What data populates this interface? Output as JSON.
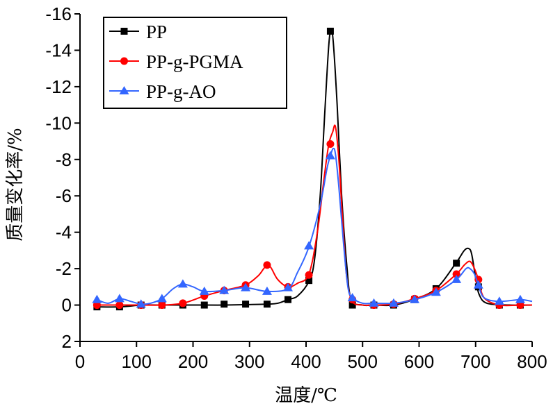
{
  "chart_data": {
    "type": "line",
    "xlabel": "温度/℃",
    "ylabel": "质量变化率/%",
    "xlim": [
      0,
      800
    ],
    "ylim": [
      2,
      -16
    ],
    "x_ticks": [
      0,
      100,
      200,
      300,
      400,
      500,
      600,
      700,
      800
    ],
    "y_ticks": [
      2,
      0,
      -2,
      -4,
      -6,
      -8,
      -10,
      -12,
      -14,
      -16
    ],
    "grid": false,
    "legend_position": "top-left",
    "series": [
      {
        "name": "PP",
        "color": "#000000",
        "marker": "square",
        "curve": [
          [
            30,
            0.1
          ],
          [
            70,
            0.1
          ],
          [
            110,
            0
          ],
          [
            145,
            0
          ],
          [
            180,
            0
          ],
          [
            220,
            0
          ],
          [
            255,
            0
          ],
          [
            290,
            -0.02
          ],
          [
            330,
            -0.05
          ],
          [
            350,
            -0.1
          ],
          [
            368,
            -0.3
          ],
          [
            385,
            -0.5
          ],
          [
            405,
            -1.3
          ],
          [
            415,
            -2.5
          ],
          [
            425,
            -6
          ],
          [
            433,
            -10.5
          ],
          [
            440,
            -14.2
          ],
          [
            444,
            -15.05
          ],
          [
            448,
            -14.5
          ],
          [
            455,
            -11
          ],
          [
            463,
            -6
          ],
          [
            472,
            -2.2
          ],
          [
            480,
            -0.3
          ],
          [
            500,
            0
          ],
          [
            520,
            0
          ],
          [
            555,
            0
          ],
          [
            590,
            -0.3
          ],
          [
            630,
            -0.9
          ],
          [
            665,
            -2.3
          ],
          [
            680,
            -3
          ],
          [
            688,
            -3.1
          ],
          [
            693,
            -2.8
          ],
          [
            700,
            -1.5
          ],
          [
            706,
            -0.6
          ],
          [
            720,
            -0.1
          ],
          [
            760,
            0
          ],
          [
            800,
            0
          ]
        ],
        "markers": [
          [
            30,
            0.1
          ],
          [
            70,
            0.1
          ],
          [
            108,
            0
          ],
          [
            145,
            0
          ],
          [
            182,
            0
          ],
          [
            220,
            0
          ],
          [
            255,
            -0.05
          ],
          [
            293,
            -0.05
          ],
          [
            331,
            -0.05
          ],
          [
            368,
            -0.3
          ],
          [
            405,
            -1.35
          ],
          [
            443,
            -15.05
          ],
          [
            482,
            0
          ],
          [
            520,
            0
          ],
          [
            555,
            0
          ],
          [
            592,
            -0.3
          ],
          [
            630,
            -0.9
          ],
          [
            666,
            -2.3
          ],
          [
            705,
            -1
          ],
          [
            742,
            0
          ],
          [
            779,
            0
          ]
        ]
      },
      {
        "name": "PP-g-PGMA",
        "color": "#ff0000",
        "marker": "circle",
        "curve": [
          [
            30,
            0
          ],
          [
            70,
            0
          ],
          [
            108,
            0
          ],
          [
            145,
            0
          ],
          [
            182,
            -0.1
          ],
          [
            220,
            -0.5
          ],
          [
            255,
            -0.8
          ],
          [
            293,
            -1.1
          ],
          [
            315,
            -1.6
          ],
          [
            325,
            -2
          ],
          [
            331,
            -2.2
          ],
          [
            338,
            -2.05
          ],
          [
            350,
            -1.4
          ],
          [
            368,
            -1
          ],
          [
            385,
            -1.2
          ],
          [
            405,
            -1.7
          ],
          [
            420,
            -4
          ],
          [
            432,
            -7
          ],
          [
            440,
            -8.8
          ],
          [
            447,
            -9.5
          ],
          [
            452,
            -9.8
          ],
          [
            458,
            -8
          ],
          [
            465,
            -4.5
          ],
          [
            472,
            -1.5
          ],
          [
            482,
            -0.2
          ],
          [
            500,
            0
          ],
          [
            520,
            0
          ],
          [
            555,
            -0.05
          ],
          [
            592,
            -0.35
          ],
          [
            630,
            -0.8
          ],
          [
            666,
            -1.7
          ],
          [
            680,
            -2.2
          ],
          [
            690,
            -2.4
          ],
          [
            698,
            -2
          ],
          [
            705,
            -1.4
          ],
          [
            715,
            -0.4
          ],
          [
            742,
            0
          ],
          [
            779,
            0
          ],
          [
            800,
            0
          ]
        ],
        "markers": [
          [
            30,
            0
          ],
          [
            70,
            0
          ],
          [
            108,
            0
          ],
          [
            145,
            0
          ],
          [
            182,
            -0.1
          ],
          [
            220,
            -0.5
          ],
          [
            255,
            -0.8
          ],
          [
            293,
            -1.1
          ],
          [
            331,
            -2.2
          ],
          [
            368,
            -1
          ],
          [
            405,
            -1.65
          ],
          [
            443,
            -8.85
          ],
          [
            482,
            -0.3
          ],
          [
            520,
            0
          ],
          [
            555,
            -0.05
          ],
          [
            592,
            -0.35
          ],
          [
            630,
            -0.8
          ],
          [
            666,
            -1.7
          ],
          [
            705,
            -1.4
          ],
          [
            742,
            0
          ],
          [
            779,
            0
          ]
        ]
      },
      {
        "name": "PP-g-AO",
        "color": "#3366ff",
        "marker": "triangle",
        "curve": [
          [
            30,
            -0.3
          ],
          [
            50,
            -0.1
          ],
          [
            70,
            -0.35
          ],
          [
            90,
            -0.2
          ],
          [
            108,
            -0.05
          ],
          [
            125,
            -0.1
          ],
          [
            145,
            -0.35
          ],
          [
            165,
            -0.9
          ],
          [
            182,
            -1.15
          ],
          [
            200,
            -1
          ],
          [
            220,
            -0.75
          ],
          [
            255,
            -0.8
          ],
          [
            293,
            -0.95
          ],
          [
            331,
            -0.75
          ],
          [
            368,
            -0.9
          ],
          [
            385,
            -1.8
          ],
          [
            405,
            -3.2
          ],
          [
            425,
            -5.5
          ],
          [
            437,
            -7.5
          ],
          [
            443,
            -8.2
          ],
          [
            448,
            -8.6
          ],
          [
            452,
            -8.3
          ],
          [
            458,
            -6.5
          ],
          [
            466,
            -3.5
          ],
          [
            474,
            -1
          ],
          [
            482,
            -0.4
          ],
          [
            500,
            -0.1
          ],
          [
            520,
            -0.1
          ],
          [
            555,
            -0.1
          ],
          [
            592,
            -0.3
          ],
          [
            630,
            -0.7
          ],
          [
            666,
            -1.4
          ],
          [
            683,
            -2
          ],
          [
            690,
            -2
          ],
          [
            698,
            -1.7
          ],
          [
            705,
            -1.1
          ],
          [
            715,
            -0.4
          ],
          [
            742,
            -0.2
          ],
          [
            779,
            -0.3
          ],
          [
            800,
            -0.2
          ]
        ],
        "markers": [
          [
            30,
            -0.3
          ],
          [
            70,
            -0.35
          ],
          [
            108,
            -0.05
          ],
          [
            145,
            -0.35
          ],
          [
            182,
            -1.15
          ],
          [
            220,
            -0.75
          ],
          [
            255,
            -0.8
          ],
          [
            293,
            -0.95
          ],
          [
            331,
            -0.75
          ],
          [
            368,
            -0.95
          ],
          [
            405,
            -3.25
          ],
          [
            443,
            -8.2
          ],
          [
            482,
            -0.4
          ],
          [
            520,
            -0.1
          ],
          [
            555,
            -0.1
          ],
          [
            592,
            -0.3
          ],
          [
            630,
            -0.7
          ],
          [
            666,
            -1.4
          ],
          [
            705,
            -1.1
          ],
          [
            742,
            -0.2
          ],
          [
            779,
            -0.3
          ]
        ]
      }
    ]
  }
}
